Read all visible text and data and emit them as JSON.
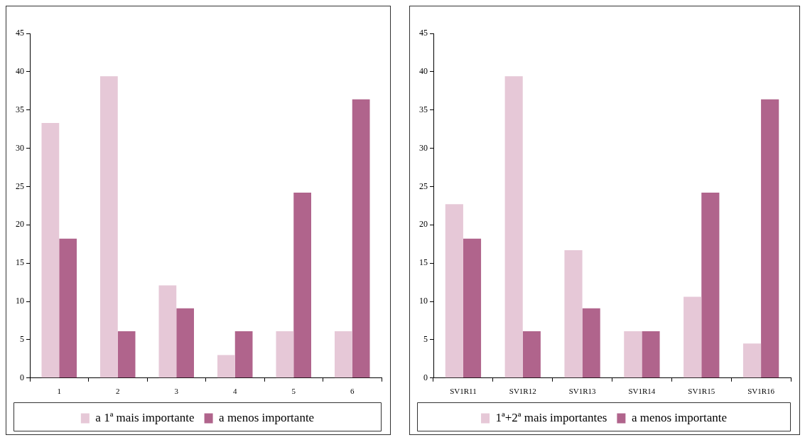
{
  "chart_data": [
    {
      "type": "bar",
      "categories": [
        "1",
        "2",
        "3",
        "4",
        "5",
        "6"
      ],
      "series": [
        {
          "name": "a 1ª mais importante",
          "color": "#e6c8d7",
          "values": [
            33.3,
            39.4,
            12.1,
            3.0,
            6.1,
            6.1
          ]
        },
        {
          "name": "a menos importante",
          "color": "#b0648c",
          "values": [
            18.2,
            6.1,
            9.1,
            6.1,
            24.2,
            36.4
          ]
        }
      ],
      "ylim": [
        0,
        45
      ],
      "yticks": [
        0,
        5,
        10,
        15,
        20,
        25,
        30,
        35,
        40,
        45
      ],
      "grid": false,
      "legend": "bottom"
    },
    {
      "type": "bar",
      "categories": [
        "SV1R11",
        "SV1R12",
        "SV1R13",
        "SV1R14",
        "SV1R15",
        "SV1R16"
      ],
      "series": [
        {
          "name": "1ª+2ª mais importantes",
          "color": "#e6c8d7",
          "values": [
            22.7,
            39.4,
            16.7,
            6.1,
            10.6,
            4.5
          ]
        },
        {
          "name": "a menos importante",
          "color": "#b0648c",
          "values": [
            18.2,
            6.1,
            9.1,
            6.1,
            24.2,
            36.4
          ]
        }
      ],
      "ylim": [
        0,
        45
      ],
      "yticks": [
        0,
        5,
        10,
        15,
        20,
        25,
        30,
        35,
        40,
        45
      ],
      "grid": false,
      "legend": "bottom"
    }
  ]
}
